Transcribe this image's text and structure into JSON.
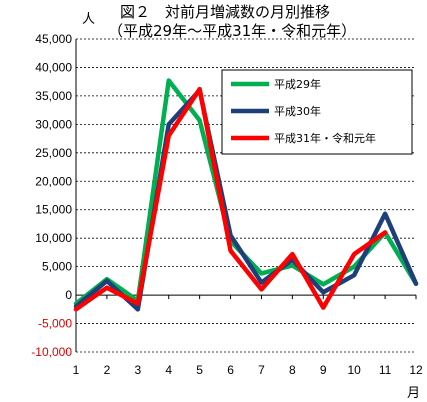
{
  "chart_data": {
    "type": "line",
    "title": "図２　対前月増減数の月別推移",
    "subtitle": "（平成29年～平成31年・令和元年）",
    "ylabel": "人",
    "xlabel": "月",
    "ylim": [
      -10000,
      45000
    ],
    "ytick_step": 5000,
    "y_tick_labels": [
      "-10,000",
      "-5,000",
      "0",
      "5,000",
      "10,000",
      "15,000",
      "20,000",
      "25,000",
      "30,000",
      "35,000",
      "40,000",
      "45,000"
    ],
    "categories": [
      "1",
      "2",
      "3",
      "4",
      "5",
      "6",
      "7",
      "8",
      "9",
      "10",
      "11",
      "12"
    ],
    "grid": "horizontal-dashed",
    "legend_position": "top-right",
    "series": [
      {
        "name": "平成29年",
        "color": "#00b050",
        "values": [
          -1500,
          2800,
          -1000,
          37700,
          30700,
          9500,
          3800,
          5200,
          1900,
          5000,
          11000,
          2000
        ]
      },
      {
        "name": "平成30年",
        "color": "#1f3f7a",
        "values": [
          -2000,
          2500,
          -2500,
          30000,
          36000,
          10500,
          2200,
          6200,
          500,
          3500,
          14300,
          2000
        ]
      },
      {
        "name": "平成31年・令和元年",
        "color": "#ff0000",
        "values": [
          -2500,
          1300,
          -1500,
          28000,
          36200,
          7800,
          1000,
          7200,
          -2200,
          7200,
          11000,
          null
        ]
      }
    ]
  }
}
